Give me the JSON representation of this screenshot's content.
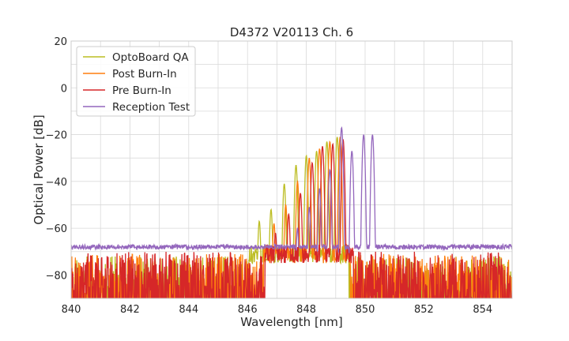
{
  "chart_data": {
    "type": "line",
    "title": "D4372 V20113 Ch. 6",
    "xlabel": "Wavelength [nm]",
    "ylabel": "Optical Power [dB]",
    "xlim": [
      840,
      855
    ],
    "ylim": [
      -90,
      20
    ],
    "xticks": [
      840,
      842,
      844,
      846,
      848,
      850,
      852,
      854
    ],
    "xtick_labels": [
      "840",
      "842",
      "844",
      "846",
      "848",
      "850",
      "852",
      "854"
    ],
    "yticks": [
      20,
      0,
      -20,
      -40,
      -60,
      -80
    ],
    "ytick_labels": [
      "20",
      "0",
      "−20",
      "−40",
      "−60",
      "−80"
    ],
    "grid": true,
    "legend_position": "top-left",
    "series": [
      {
        "name": "OptoBoard QA",
        "color": "#bcbd22",
        "peaks": [
          [
            846.4,
            -57
          ],
          [
            846.8,
            -52
          ],
          [
            847.25,
            -41
          ],
          [
            847.65,
            -33
          ],
          [
            848.0,
            -29
          ],
          [
            848.35,
            -27
          ],
          [
            848.7,
            -23
          ],
          [
            849.05,
            -21
          ]
        ],
        "envelope_start": 846.05,
        "envelope_end": 849.4,
        "noise_start": 840.0,
        "noise_end": 855.0,
        "noise_range": [
          -90,
          -72
        ],
        "floor_gap": [
          846.1,
          849.45
        ]
      },
      {
        "name": "Post Burn-In",
        "color": "#ff7f0e",
        "peaks": [
          [
            846.9,
            -58
          ],
          [
            847.3,
            -50
          ],
          [
            847.7,
            -40
          ],
          [
            848.1,
            -30
          ],
          [
            848.45,
            -26
          ],
          [
            848.8,
            -23
          ],
          [
            849.15,
            -21
          ]
        ],
        "envelope_start": 846.55,
        "envelope_end": 849.45,
        "noise_start": 840.0,
        "noise_end": 855.0,
        "noise_range": [
          -90,
          -71
        ],
        "floor_gap": [
          846.6,
          849.5
        ]
      },
      {
        "name": "Pre Burn-In",
        "color": "#d62728",
        "peaks": [
          [
            846.95,
            -62
          ],
          [
            847.4,
            -54
          ],
          [
            847.8,
            -45
          ],
          [
            848.2,
            -32
          ],
          [
            848.55,
            -25
          ],
          [
            848.9,
            -24
          ],
          [
            849.25,
            -22
          ]
        ],
        "envelope_start": 846.6,
        "envelope_end": 849.55,
        "noise_start": 840.0,
        "noise_end": 855.0,
        "noise_range": [
          -90,
          -70
        ],
        "floor_gap": [
          846.65,
          849.6
        ]
      },
      {
        "name": "Reception Test",
        "color": "#9467bd",
        "peaks": [
          [
            847.7,
            -60
          ],
          [
            848.1,
            -51
          ],
          [
            848.45,
            -43
          ],
          [
            848.8,
            -35
          ],
          [
            849.2,
            -17
          ],
          [
            849.55,
            -27
          ],
          [
            849.95,
            -20
          ],
          [
            850.25,
            -20
          ]
        ],
        "envelope_start": 847.3,
        "envelope_end": 850.55,
        "noise_start": 840.0,
        "noise_end": 855.0,
        "noise_range": [
          -70,
          -66
        ],
        "floor_gap": null,
        "baseline": -68
      }
    ]
  }
}
